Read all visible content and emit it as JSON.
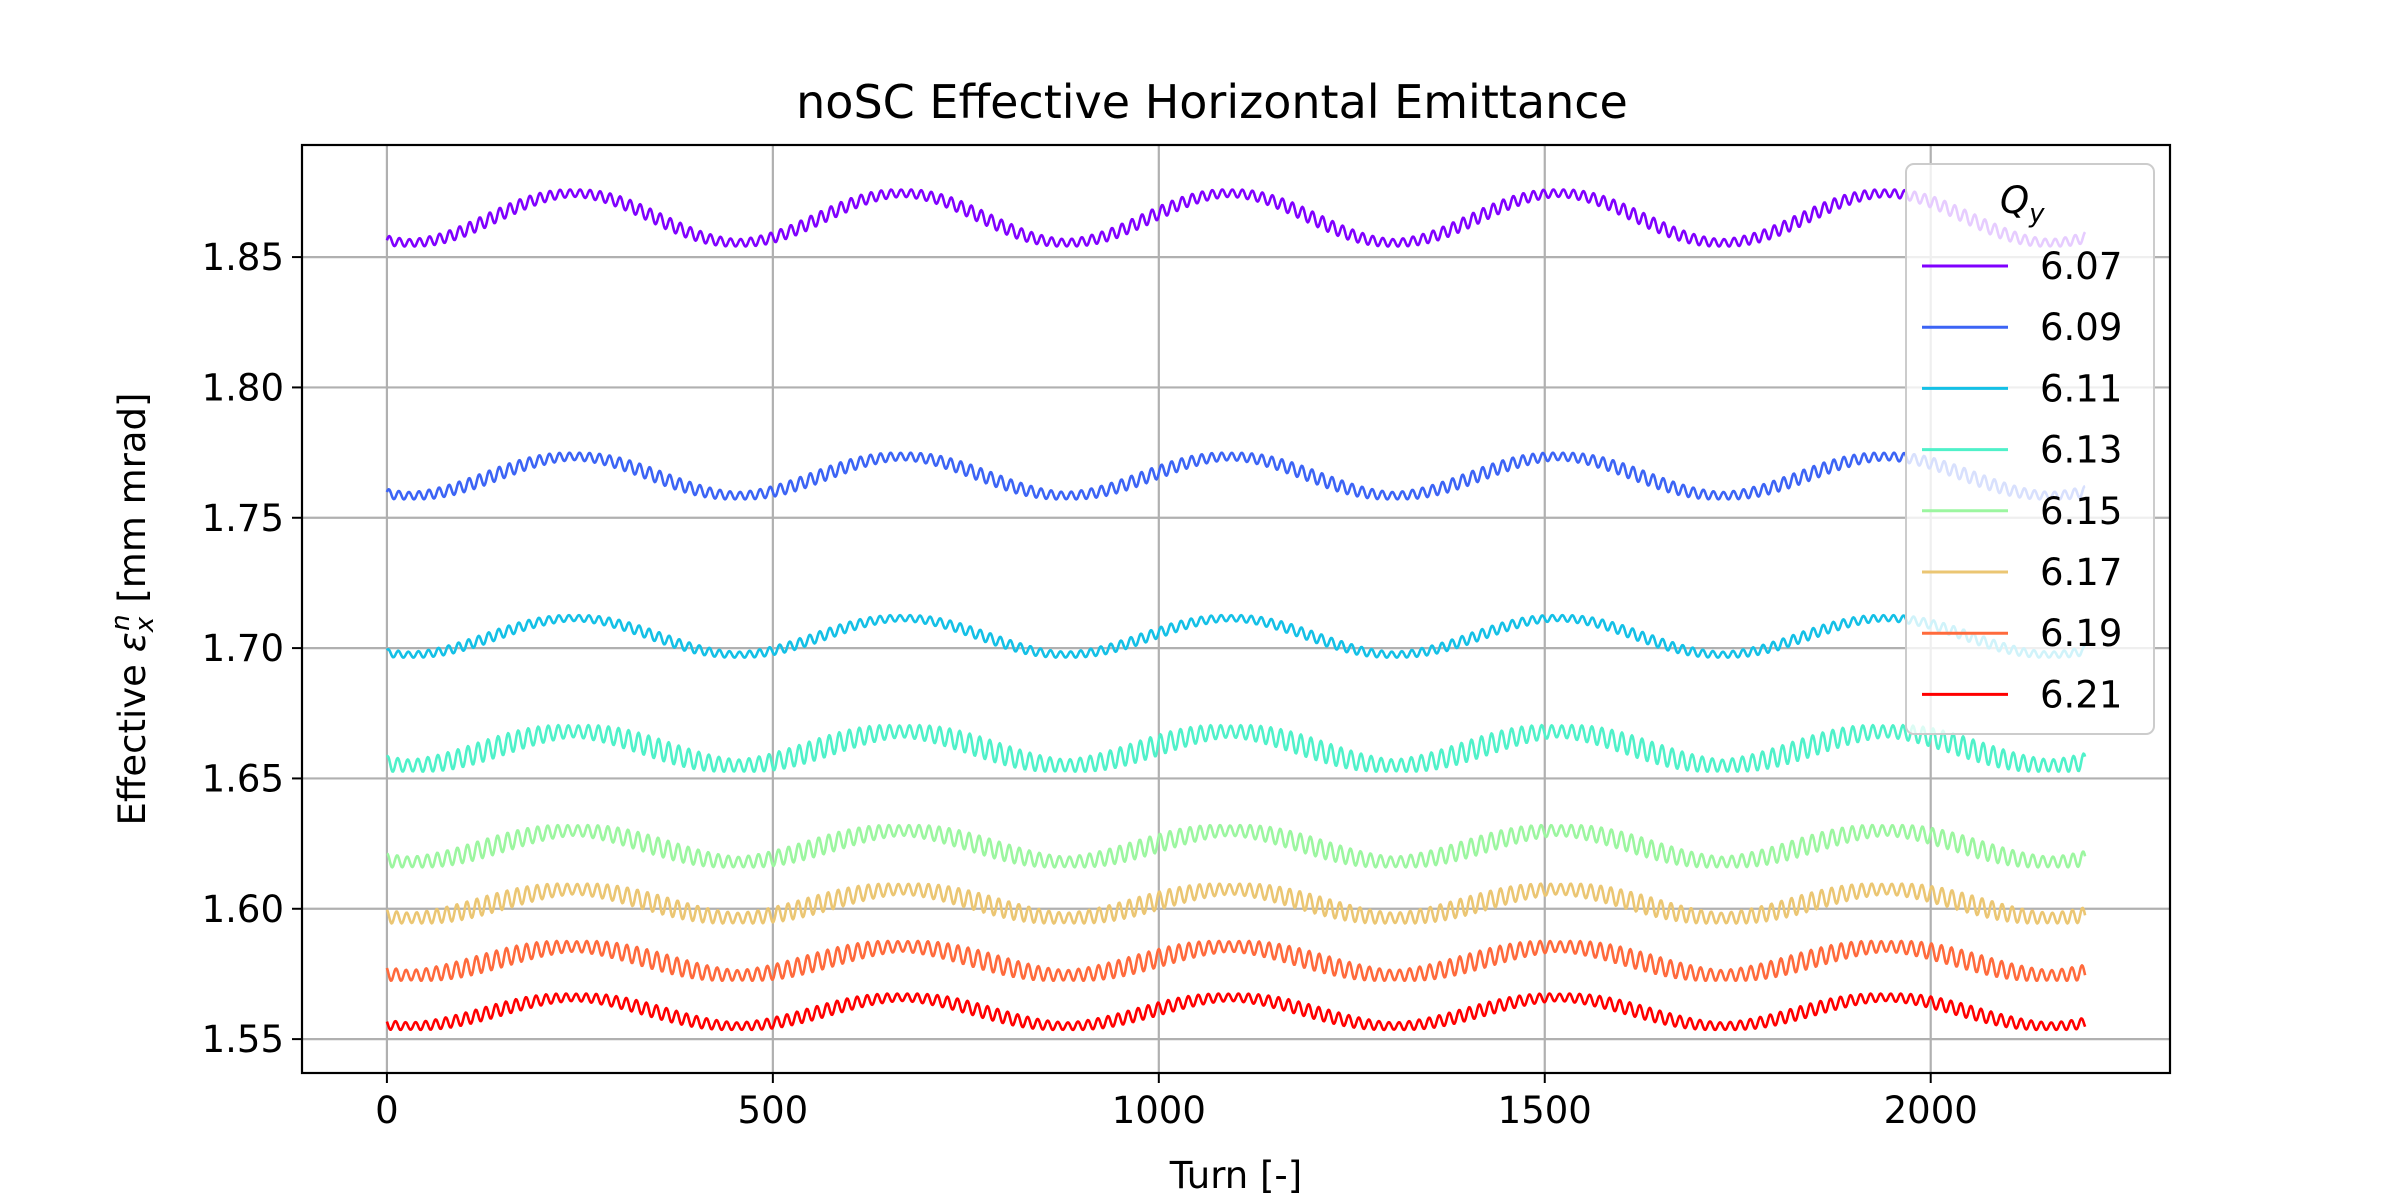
{
  "chart_data": {
    "type": "line",
    "title": "noSC Effective Horizontal Emittance",
    "xlabel": "Turn [-]",
    "ylabel_prefix": "Effective ",
    "ylabel_symbol": "ε",
    "ylabel_sub": "x",
    "ylabel_sup": "n",
    "ylabel_suffix": " [mm mrad]",
    "xlim": [
      -110,
      2310
    ],
    "ylim": [
      1.537,
      1.893
    ],
    "xticks": [
      0,
      500,
      1000,
      1500,
      2000
    ],
    "xtick_labels": [
      "0",
      "500",
      "1000",
      "1500",
      "2000"
    ],
    "yticks": [
      1.55,
      1.6,
      1.65,
      1.7,
      1.75,
      1.8,
      1.85
    ],
    "ytick_labels": [
      "1.55",
      "1.60",
      "1.65",
      "1.70",
      "1.75",
      "1.80",
      "1.85"
    ],
    "grid": true,
    "legend_position": "top-right",
    "legend_title_main": "Q",
    "legend_title_sub": "y",
    "x_range": [
      0,
      2200
    ],
    "slow_period": 425,
    "fast_period": 13,
    "series": [
      {
        "name": "6.07",
        "color": "#8000ff",
        "mean": 1.865,
        "slow_amp": 0.0095,
        "fast_amp": 0.0025
      },
      {
        "name": "6.09",
        "color": "#3c64f5",
        "mean": 1.766,
        "slow_amp": 0.0075,
        "fast_amp": 0.0025
      },
      {
        "name": "6.11",
        "color": "#14c0e6",
        "mean": 1.7045,
        "slow_amp": 0.007,
        "fast_amp": 0.002
      },
      {
        "name": "6.13",
        "color": "#4ff1c9",
        "mean": 1.6615,
        "slow_amp": 0.0065,
        "fast_amp": 0.004
      },
      {
        "name": "6.15",
        "color": "#9cf6a0",
        "mean": 1.624,
        "slow_amp": 0.006,
        "fast_amp": 0.0035
      },
      {
        "name": "6.17",
        "color": "#ebc673",
        "mean": 1.602,
        "slow_amp": 0.0055,
        "fast_amp": 0.0035
      },
      {
        "name": "6.19",
        "color": "#ff6a3c",
        "mean": 1.58,
        "slow_amp": 0.0055,
        "fast_amp": 0.0035
      },
      {
        "name": "6.21",
        "color": "#ff0000",
        "mean": 1.5605,
        "slow_amp": 0.0055,
        "fast_amp": 0.0025
      }
    ]
  }
}
